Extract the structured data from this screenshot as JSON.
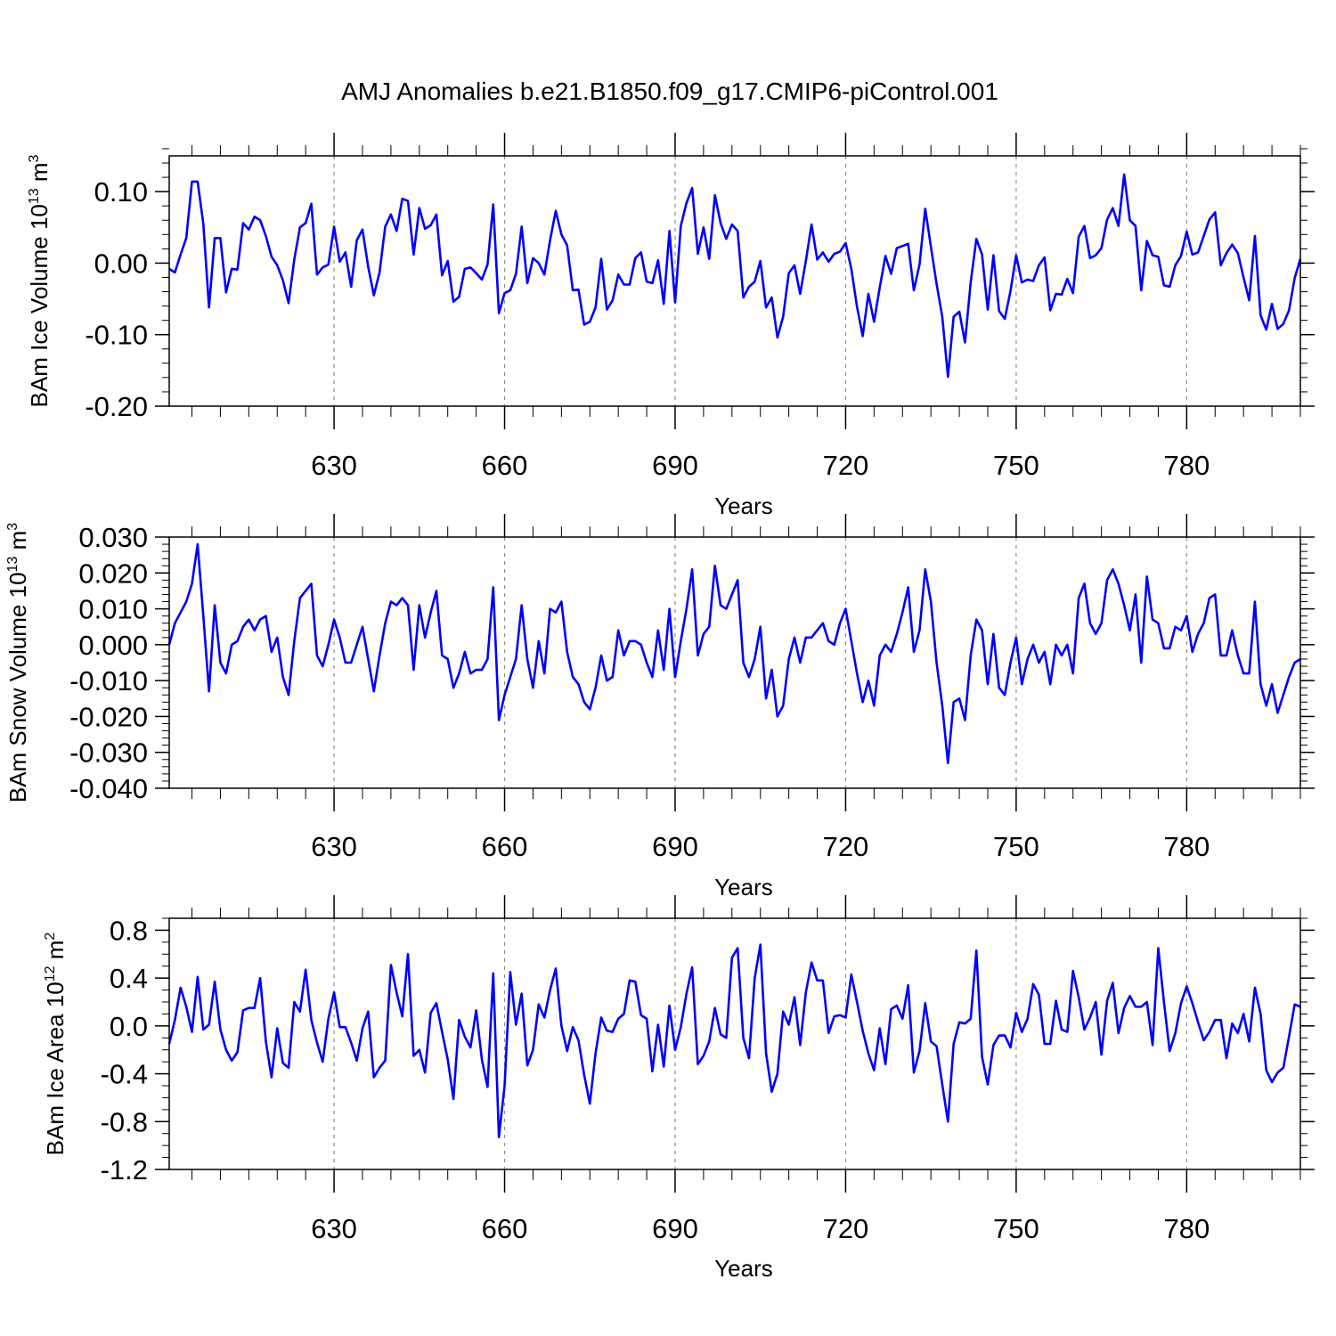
{
  "title": "AMJ Anomalies b.e21.B1850.f09_g17.CMIP6-piControl.001",
  "colors": {
    "series": "#0000ff",
    "axis": "#000000",
    "grid": "#8c8c8c"
  },
  "chart_data": [
    {
      "type": "line",
      "ylabel_main": "BAm Ice Volume 10",
      "ylabel_exp": "13",
      "ylabel_unit": " m",
      "ylabel_unit_exp": "3",
      "xlabel": "Years",
      "xlim": [
        601,
        800
      ],
      "ylim": [
        -0.2,
        0.15
      ],
      "xticks": [
        630,
        660,
        690,
        720,
        750,
        780
      ],
      "xtick_labels": [
        "630",
        "660",
        "690",
        "720",
        "750",
        "780"
      ],
      "yticks": [
        -0.2,
        -0.1,
        0.0,
        0.1
      ],
      "ytick_labels": [
        "-0.20",
        "-0.10",
        "0.00",
        "0.10"
      ],
      "yminor": 0.02,
      "series": [
        {
          "name": "BAm Ice Volume",
          "x_start": 601,
          "values": [
            -0.008,
            -0.013,
            0.012,
            0.035,
            0.114,
            0.114,
            0.055,
            -0.062,
            0.035,
            0.035,
            -0.041,
            -0.008,
            -0.009,
            0.056,
            0.047,
            0.065,
            0.06,
            0.038,
            0.009,
            -0.003,
            -0.024,
            -0.056,
            0.005,
            0.05,
            0.056,
            0.083,
            -0.016,
            -0.006,
            -0.002,
            0.051,
            0.002,
            0.015,
            -0.033,
            0.032,
            0.047,
            -0.005,
            -0.045,
            -0.013,
            0.051,
            0.068,
            0.045,
            0.09,
            0.087,
            0.012,
            0.077,
            0.048,
            0.053,
            0.068,
            -0.017,
            0.003,
            -0.054,
            -0.047,
            -0.008,
            -0.006,
            -0.014,
            -0.023,
            -0.002,
            0.082,
            -0.07,
            -0.042,
            -0.038,
            -0.015,
            0.051,
            -0.028,
            0.007,
            0.0,
            -0.016,
            0.032,
            0.073,
            0.04,
            0.025,
            -0.038,
            -0.037,
            -0.086,
            -0.082,
            -0.062,
            0.006,
            -0.065,
            -0.052,
            -0.016,
            -0.03,
            -0.03,
            0.007,
            0.015,
            -0.026,
            -0.028,
            0.004,
            -0.057,
            0.045,
            -0.055,
            0.052,
            0.084,
            0.105,
            0.013,
            0.05,
            0.006,
            0.095,
            0.056,
            0.034,
            0.054,
            0.045,
            -0.048,
            -0.033,
            -0.026,
            0.003,
            -0.062,
            -0.048,
            -0.104,
            -0.075,
            -0.014,
            -0.003,
            -0.043,
            0.003,
            0.054,
            0.005,
            0.015,
            0.002,
            0.013,
            0.016,
            0.028,
            -0.008,
            -0.061,
            -0.102,
            -0.043,
            -0.082,
            -0.034,
            0.01,
            -0.015,
            0.021,
            0.024,
            0.027,
            -0.038,
            -0.002,
            0.076,
            0.023,
            -0.029,
            -0.075,
            -0.159,
            -0.075,
            -0.068,
            -0.111,
            -0.027,
            0.034,
            0.012,
            -0.065,
            0.011,
            -0.067,
            -0.078,
            -0.039,
            0.011,
            -0.027,
            -0.023,
            -0.025,
            -0.003,
            0.008,
            -0.066,
            -0.043,
            -0.044,
            -0.022,
            -0.042,
            0.037,
            0.052,
            0.007,
            0.011,
            0.021,
            0.061,
            0.077,
            0.052,
            0.124,
            0.06,
            0.052,
            -0.038,
            0.031,
            0.011,
            0.009,
            -0.031,
            -0.033,
            -0.003,
            0.01,
            0.044,
            0.012,
            0.015,
            0.038,
            0.061,
            0.071,
            -0.003,
            0.014,
            0.026,
            0.014,
            -0.02,
            -0.052,
            0.038,
            -0.073,
            -0.093,
            -0.057,
            -0.092,
            -0.085,
            -0.066,
            -0.021,
            0.006
          ]
        }
      ]
    },
    {
      "type": "line",
      "ylabel_main": "BAm Snow Volume 10",
      "ylabel_exp": "13",
      "ylabel_unit": " m",
      "ylabel_unit_exp": "3",
      "xlabel": "Years",
      "xlim": [
        601,
        800
      ],
      "ylim": [
        -0.04,
        0.03
      ],
      "xticks": [
        630,
        660,
        690,
        720,
        750,
        780
      ],
      "xtick_labels": [
        "630",
        "660",
        "690",
        "720",
        "750",
        "780"
      ],
      "yticks": [
        -0.04,
        -0.03,
        -0.02,
        -0.01,
        0.0,
        0.01,
        0.02,
        0.03
      ],
      "ytick_labels": [
        "-0.040",
        "-0.030",
        "-0.020",
        "-0.010",
        "0.000",
        "0.010",
        "0.020",
        "0.030"
      ],
      "yminor": 0.002,
      "series": [
        {
          "name": "BAm Snow Volume",
          "x_start": 601,
          "values": [
            0.0,
            0.006,
            0.009,
            0.012,
            0.017,
            0.028,
            0.008,
            -0.013,
            0.011,
            -0.005,
            -0.008,
            0.0,
            0.001,
            0.005,
            0.007,
            0.004,
            0.007,
            0.008,
            -0.002,
            0.002,
            -0.009,
            -0.014,
            0.001,
            0.013,
            0.015,
            0.017,
            -0.003,
            -0.006,
            0.0,
            0.007,
            0.002,
            -0.005,
            -0.005,
            0.0,
            0.005,
            -0.004,
            -0.013,
            -0.003,
            0.006,
            0.012,
            0.011,
            0.013,
            0.011,
            -0.007,
            0.011,
            0.002,
            0.009,
            0.015,
            -0.003,
            -0.004,
            -0.012,
            -0.008,
            -0.002,
            -0.008,
            -0.007,
            -0.007,
            -0.004,
            0.016,
            -0.021,
            -0.014,
            -0.009,
            -0.004,
            0.011,
            -0.004,
            -0.012,
            0.001,
            -0.008,
            0.01,
            0.009,
            0.012,
            -0.002,
            -0.009,
            -0.011,
            -0.016,
            -0.018,
            -0.012,
            -0.003,
            -0.01,
            -0.009,
            0.004,
            -0.003,
            0.001,
            0.001,
            0.0,
            -0.005,
            -0.009,
            0.004,
            -0.007,
            0.01,
            -0.009,
            0.001,
            0.01,
            0.021,
            -0.003,
            0.003,
            0.005,
            0.022,
            0.011,
            0.01,
            0.014,
            0.018,
            -0.005,
            -0.009,
            -0.004,
            0.005,
            -0.015,
            -0.007,
            -0.02,
            -0.017,
            -0.004,
            0.002,
            -0.005,
            0.002,
            0.002,
            0.004,
            0.006,
            0.001,
            0.0,
            0.006,
            0.01,
            0.001,
            -0.008,
            -0.016,
            -0.01,
            -0.017,
            -0.003,
            0.0,
            -0.002,
            0.003,
            0.009,
            0.016,
            -0.002,
            0.004,
            0.021,
            0.012,
            -0.005,
            -0.017,
            -0.033,
            -0.016,
            -0.015,
            -0.021,
            -0.003,
            0.007,
            0.004,
            -0.011,
            0.003,
            -0.012,
            -0.014,
            -0.005,
            0.002,
            -0.011,
            -0.004,
            0.0,
            -0.005,
            -0.002,
            -0.011,
            0.0,
            -0.003,
            0.0,
            -0.008,
            0.013,
            0.017,
            0.006,
            0.003,
            0.006,
            0.018,
            0.021,
            0.017,
            0.011,
            0.004,
            0.014,
            -0.005,
            0.019,
            0.007,
            0.006,
            -0.001,
            -0.001,
            0.005,
            0.004,
            0.008,
            -0.002,
            0.003,
            0.006,
            0.013,
            0.014,
            -0.003,
            -0.003,
            0.004,
            -0.003,
            -0.008,
            -0.008,
            0.012,
            -0.011,
            -0.017,
            -0.011,
            -0.019,
            -0.014,
            -0.009,
            -0.005,
            -0.004
          ]
        }
      ]
    },
    {
      "type": "line",
      "ylabel_main": "BAm Ice Area 10",
      "ylabel_exp": "12",
      "ylabel_unit": " m",
      "ylabel_unit_exp": "2",
      "xlabel": "Years",
      "xlim": [
        601,
        800
      ],
      "ylim": [
        -1.2,
        0.9
      ],
      "xticks": [
        630,
        660,
        690,
        720,
        750,
        780
      ],
      "xtick_labels": [
        "630",
        "660",
        "690",
        "720",
        "750",
        "780"
      ],
      "yticks": [
        -1.2,
        -0.8,
        -0.4,
        0.0,
        0.4,
        0.8
      ],
      "ytick_labels": [
        "-1.2",
        "-0.8",
        "-0.4",
        "0.0",
        "0.4",
        "0.8"
      ],
      "yminor": 0.1,
      "series": [
        {
          "name": "BAm Ice Area",
          "x_start": 601,
          "values": [
            -0.15,
            0.05,
            0.32,
            0.16,
            -0.05,
            0.41,
            -0.03,
            0.01,
            0.37,
            -0.03,
            -0.2,
            -0.29,
            -0.22,
            0.13,
            0.15,
            0.15,
            0.4,
            -0.13,
            -0.43,
            -0.02,
            -0.31,
            -0.35,
            0.2,
            0.12,
            0.47,
            0.05,
            -0.14,
            -0.3,
            0.06,
            0.28,
            -0.01,
            -0.01,
            -0.14,
            -0.29,
            -0.02,
            0.12,
            -0.43,
            -0.35,
            -0.29,
            0.51,
            0.28,
            0.08,
            0.6,
            -0.25,
            -0.2,
            -0.39,
            0.11,
            0.19,
            -0.05,
            -0.28,
            -0.61,
            0.05,
            -0.09,
            -0.18,
            0.13,
            -0.28,
            -0.51,
            0.44,
            -0.93,
            -0.5,
            0.45,
            0.01,
            0.27,
            -0.33,
            -0.2,
            0.18,
            0.07,
            0.3,
            0.48,
            0.0,
            -0.21,
            -0.01,
            -0.12,
            -0.41,
            -0.65,
            -0.23,
            0.07,
            -0.04,
            -0.05,
            0.06,
            0.1,
            0.38,
            0.37,
            0.09,
            0.06,
            -0.38,
            0.01,
            -0.34,
            0.17,
            -0.2,
            -0.01,
            0.27,
            0.49,
            -0.32,
            -0.25,
            -0.13,
            0.15,
            -0.07,
            -0.1,
            0.57,
            0.65,
            -0.1,
            -0.27,
            0.4,
            0.68,
            -0.23,
            -0.55,
            -0.4,
            0.12,
            0.01,
            0.24,
            -0.16,
            0.28,
            0.53,
            0.38,
            0.38,
            -0.06,
            0.08,
            0.09,
            0.07,
            0.43,
            0.2,
            -0.04,
            -0.23,
            -0.37,
            -0.02,
            -0.32,
            0.14,
            0.17,
            0.06,
            0.34,
            -0.39,
            -0.21,
            0.19,
            -0.13,
            -0.17,
            -0.49,
            -0.8,
            -0.15,
            0.03,
            0.02,
            0.06,
            0.63,
            -0.26,
            -0.49,
            -0.16,
            -0.08,
            -0.08,
            -0.18,
            0.11,
            -0.05,
            0.06,
            0.35,
            0.26,
            -0.15,
            -0.15,
            0.21,
            -0.03,
            -0.05,
            0.46,
            0.24,
            -0.03,
            0.07,
            0.2,
            -0.24,
            0.21,
            0.36,
            -0.06,
            0.15,
            0.25,
            0.16,
            0.16,
            0.2,
            -0.16,
            0.65,
            0.2,
            -0.21,
            -0.06,
            0.19,
            0.33,
            0.19,
            0.03,
            -0.12,
            -0.05,
            0.05,
            0.05,
            -0.27,
            0.02,
            -0.06,
            0.1,
            -0.13,
            0.32,
            0.1,
            -0.37,
            -0.47,
            -0.39,
            -0.35,
            -0.09,
            0.18,
            0.16
          ]
        }
      ]
    }
  ]
}
